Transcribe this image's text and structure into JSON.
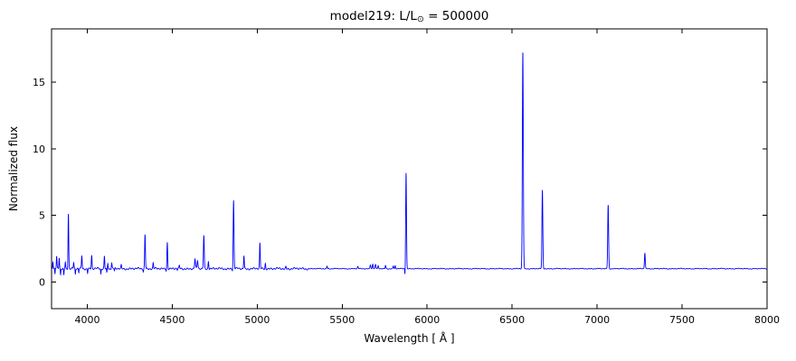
{
  "chart_data": {
    "type": "line",
    "title": "model219: L/L⊙ = 500000",
    "title_parts": {
      "prefix": "model219: L/L",
      "sun_symbol": "⊙",
      "suffix": " = 500000"
    },
    "xlabel": "Wavelength [ Å ]",
    "ylabel": "Normalized flux",
    "xlim": [
      3790,
      8000
    ],
    "ylim": [
      -2,
      19
    ],
    "xticks": [
      4000,
      4500,
      5000,
      5500,
      6000,
      6500,
      7000,
      7500,
      8000
    ],
    "yticks": [
      0,
      5,
      10,
      15
    ],
    "grid": false,
    "legend": null,
    "line_color": "#0000ff",
    "axes_color": "#000000",
    "continuum_flux": 1.0,
    "noise_amplitude": 0.028,
    "emission_lines": [
      {
        "wavelength": 3798,
        "peak_flux": 1.55,
        "sigma": 1.8
      },
      {
        "wavelength": 3820,
        "peak_flux": 1.9,
        "sigma": 1.8
      },
      {
        "wavelength": 3835,
        "peak_flux": 1.85,
        "sigma": 1.8
      },
      {
        "wavelength": 3871,
        "peak_flux": 1.5,
        "sigma": 1.8
      },
      {
        "wavelength": 3889,
        "peak_flux": 5.2,
        "sigma": 2.0
      },
      {
        "wavelength": 3920,
        "peak_flux": 1.45,
        "sigma": 1.8
      },
      {
        "wavelength": 3968,
        "peak_flux": 2.0,
        "sigma": 2.0
      },
      {
        "wavelength": 4026,
        "peak_flux": 2.0,
        "sigma": 2.0
      },
      {
        "wavelength": 4101,
        "peak_flux": 1.95,
        "sigma": 2.0
      },
      {
        "wavelength": 4121,
        "peak_flux": 1.45,
        "sigma": 1.8
      },
      {
        "wavelength": 4144,
        "peak_flux": 1.4,
        "sigma": 1.8
      },
      {
        "wavelength": 4200,
        "peak_flux": 1.25,
        "sigma": 1.8
      },
      {
        "wavelength": 4340,
        "peak_flux": 3.6,
        "sigma": 2.2
      },
      {
        "wavelength": 4388,
        "peak_flux": 1.4,
        "sigma": 1.8
      },
      {
        "wavelength": 4471,
        "peak_flux": 3.0,
        "sigma": 2.2
      },
      {
        "wavelength": 4542,
        "peak_flux": 1.2,
        "sigma": 1.8
      },
      {
        "wavelength": 4634,
        "peak_flux": 1.7,
        "sigma": 2.4
      },
      {
        "wavelength": 4649,
        "peak_flux": 1.6,
        "sigma": 2.4
      },
      {
        "wavelength": 4686,
        "peak_flux": 3.5,
        "sigma": 2.4
      },
      {
        "wavelength": 4713,
        "peak_flux": 1.6,
        "sigma": 2.0
      },
      {
        "wavelength": 4861,
        "peak_flux": 6.1,
        "sigma": 2.4
      },
      {
        "wavelength": 4922,
        "peak_flux": 2.0,
        "sigma": 2.0
      },
      {
        "wavelength": 5016,
        "peak_flux": 2.9,
        "sigma": 2.0
      },
      {
        "wavelength": 5048,
        "peak_flux": 1.4,
        "sigma": 1.8
      },
      {
        "wavelength": 5169,
        "peak_flux": 1.15,
        "sigma": 1.8
      },
      {
        "wavelength": 5411,
        "peak_flux": 1.2,
        "sigma": 2.0
      },
      {
        "wavelength": 5592,
        "peak_flux": 1.15,
        "sigma": 2.0
      },
      {
        "wavelength": 5666,
        "peak_flux": 1.3,
        "sigma": 2.4
      },
      {
        "wavelength": 5680,
        "peak_flux": 1.35,
        "sigma": 2.4
      },
      {
        "wavelength": 5696,
        "peak_flux": 1.3,
        "sigma": 2.4
      },
      {
        "wavelength": 5712,
        "peak_flux": 1.2,
        "sigma": 2.0
      },
      {
        "wavelength": 5755,
        "peak_flux": 1.25,
        "sigma": 2.0
      },
      {
        "wavelength": 5801,
        "peak_flux": 1.2,
        "sigma": 2.0
      },
      {
        "wavelength": 5812,
        "peak_flux": 1.2,
        "sigma": 2.0
      },
      {
        "wavelength": 5876,
        "peak_flux": 8.2,
        "sigma": 2.4
      },
      {
        "wavelength": 6563,
        "peak_flux": 17.3,
        "sigma": 2.8
      },
      {
        "wavelength": 6678,
        "peak_flux": 6.9,
        "sigma": 2.5
      },
      {
        "wavelength": 7065,
        "peak_flux": 5.8,
        "sigma": 2.6
      },
      {
        "wavelength": 7281,
        "peak_flux": 2.2,
        "sigma": 2.4
      }
    ],
    "absorption_lines": [
      {
        "wavelength": 3810,
        "min_flux": 0.55,
        "sigma": 1.5
      },
      {
        "wavelength": 3843,
        "min_flux": 0.55,
        "sigma": 1.5
      },
      {
        "wavelength": 3862,
        "min_flux": 0.5,
        "sigma": 1.5
      },
      {
        "wavelength": 3930,
        "min_flux": 0.55,
        "sigma": 1.5
      },
      {
        "wavelength": 3950,
        "min_flux": 0.7,
        "sigma": 1.5
      },
      {
        "wavelength": 4002,
        "min_flux": 0.7,
        "sigma": 1.5
      },
      {
        "wavelength": 4080,
        "min_flux": 0.6,
        "sigma": 1.5
      },
      {
        "wavelength": 4115,
        "min_flux": 0.7,
        "sigma": 1.5
      },
      {
        "wavelength": 4160,
        "min_flux": 0.8,
        "sigma": 1.5
      },
      {
        "wavelength": 4330,
        "min_flux": 0.8,
        "sigma": 1.5
      },
      {
        "wavelength": 4465,
        "min_flux": 0.85,
        "sigma": 1.5
      },
      {
        "wavelength": 4530,
        "min_flux": 0.9,
        "sigma": 1.8
      },
      {
        "wavelength": 4855,
        "min_flux": 0.8,
        "sigma": 1.5
      },
      {
        "wavelength": 5870,
        "min_flux": 0.45,
        "sigma": 1.4
      }
    ]
  }
}
